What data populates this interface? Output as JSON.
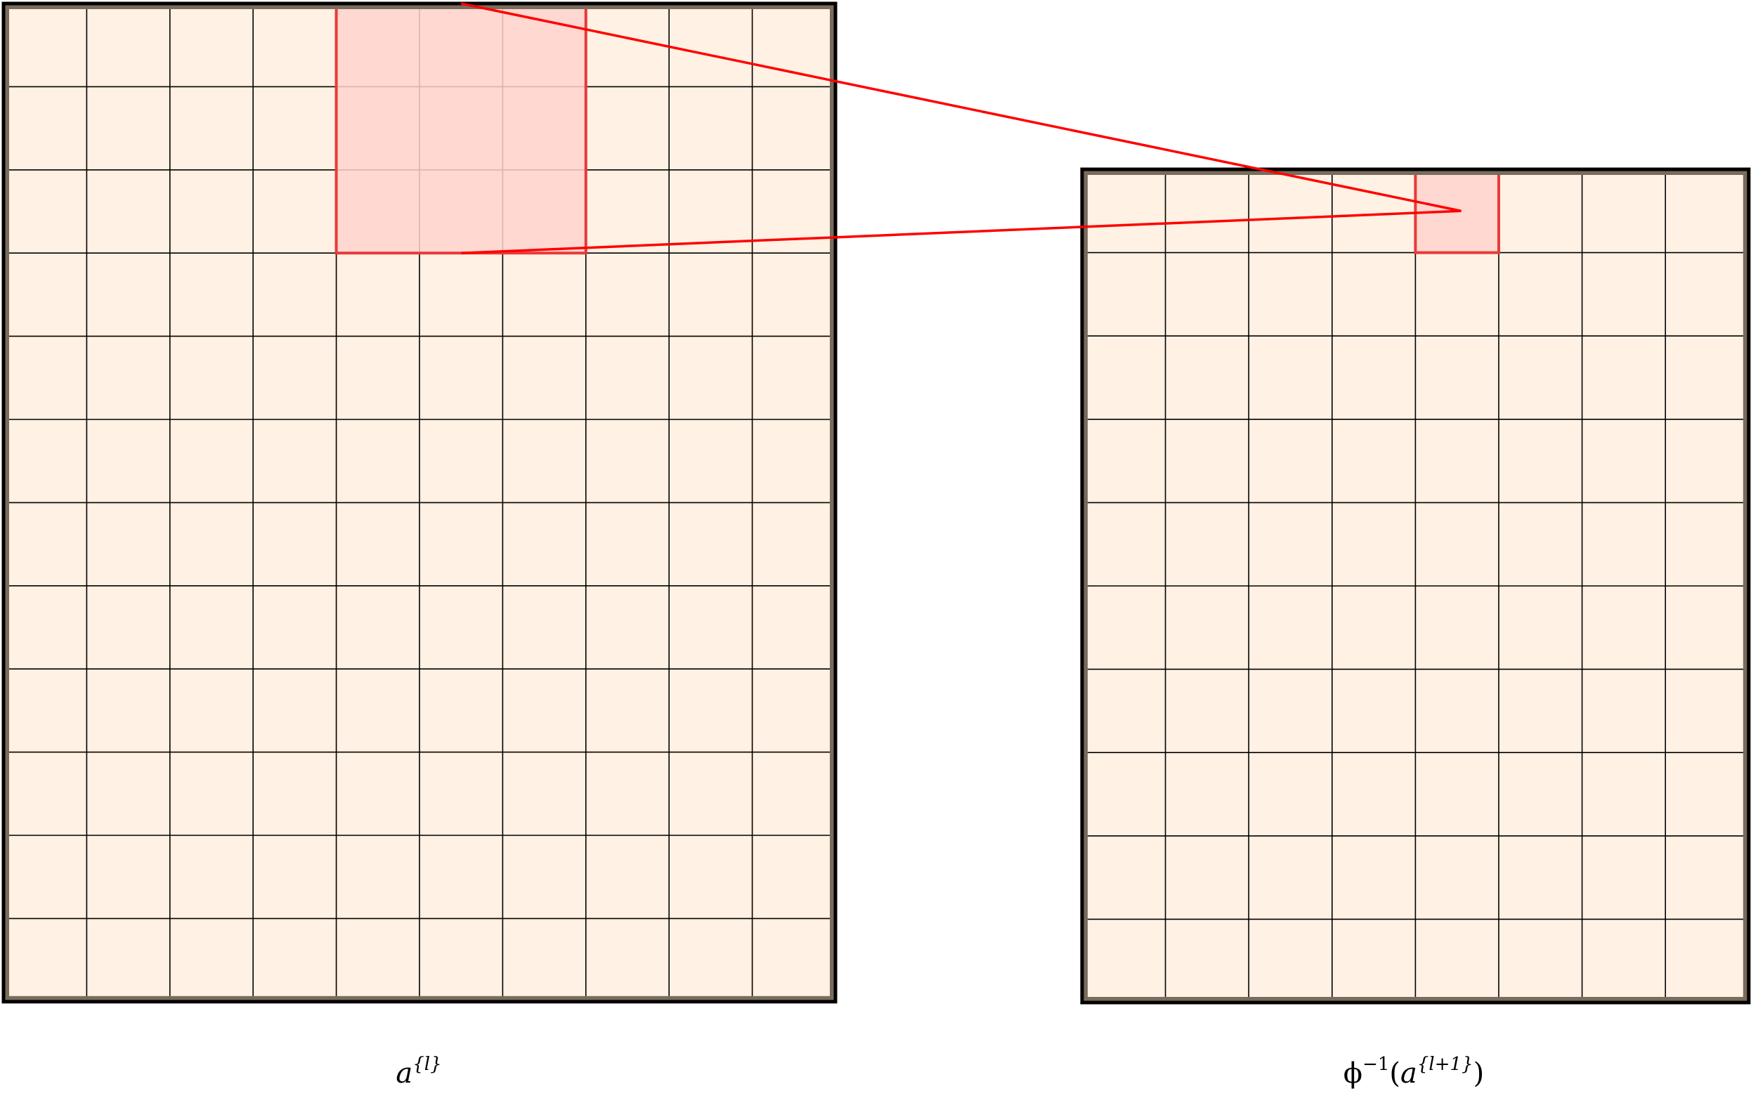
{
  "colors": {
    "cell_fill": "#fff1e3",
    "grid_line": "#000000",
    "frame": "#000000",
    "frame_inner": "#7a6c5d",
    "highlight_fill": "#ffd3ce",
    "highlight_stroke": "#e83a3a",
    "connector": "#ff0000"
  },
  "left_grid": {
    "columns": 10,
    "rows": 12,
    "highlight": {
      "col_start": 4,
      "col_end": 6,
      "row_start": 0,
      "row_end": 2
    },
    "label": {
      "base": "a",
      "superscript": "{l}"
    }
  },
  "right_grid": {
    "columns": 8,
    "rows": 10,
    "highlight": {
      "col_start": 4,
      "col_end": 4,
      "row_start": 0,
      "row_end": 0
    },
    "label": {
      "prefix": "ϕ",
      "prefix_sup": "−1",
      "open": "(",
      "base": "a",
      "superscript": "{l+1}",
      "close": ")"
    }
  }
}
